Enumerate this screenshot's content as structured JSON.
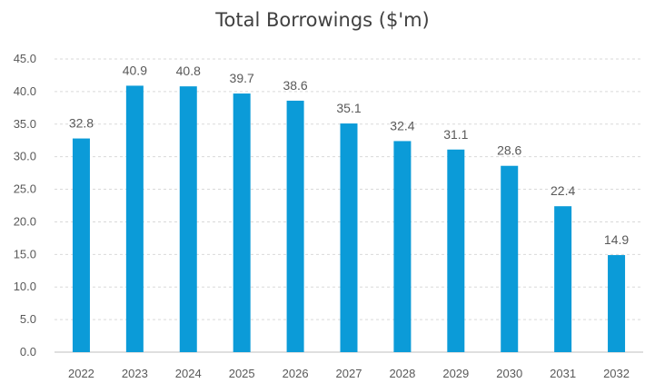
{
  "chart_data": {
    "type": "bar",
    "title": "Total Borrowings ($'m)",
    "xlabel": "",
    "ylabel": "",
    "categories": [
      "2022",
      "2023",
      "2024",
      "2025",
      "2026",
      "2027",
      "2028",
      "2029",
      "2030",
      "2031",
      "2032"
    ],
    "values": [
      32.8,
      40.9,
      40.8,
      39.7,
      38.6,
      35.1,
      32.4,
      31.1,
      28.6,
      22.4,
      14.9
    ],
    "data_labels": [
      "32.8",
      "40.9",
      "40.8",
      "39.7",
      "38.6",
      "35.1",
      "32.4",
      "31.1",
      "28.6",
      "22.4",
      "14.9"
    ],
    "ylim": [
      0,
      45
    ],
    "y_ticks": [
      "0.0",
      "5.0",
      "10.0",
      "15.0",
      "20.0",
      "25.0",
      "30.0",
      "35.0",
      "40.0",
      "45.0"
    ],
    "y_tick_values": [
      0,
      5,
      10,
      15,
      20,
      25,
      30,
      35,
      40,
      45
    ],
    "grid": true,
    "legend": "none",
    "bar_color": "#0b9bd8"
  }
}
